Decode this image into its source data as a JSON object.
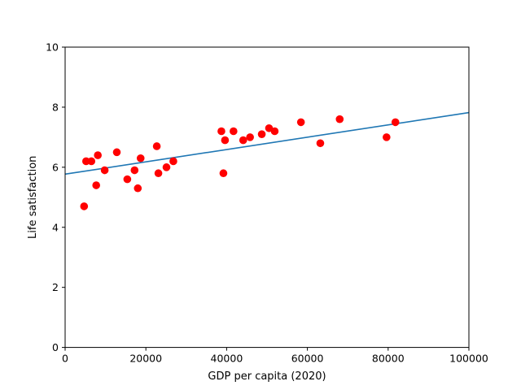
{
  "chart_data": {
    "type": "scatter",
    "xlabel": "GDP per capita (2020)",
    "ylabel": "Life satisfaction",
    "xlim": [
      0,
      100000
    ],
    "ylim": [
      0,
      10
    ],
    "xticks": [
      0,
      20000,
      40000,
      60000,
      80000,
      100000
    ],
    "yticks": [
      0,
      2,
      4,
      6,
      8,
      10
    ],
    "grid": false,
    "legend": "none",
    "points": {
      "color": "#ff0000",
      "x": [
        4700,
        5200,
        6500,
        7700,
        8100,
        9800,
        12800,
        15400,
        17200,
        18000,
        18700,
        22700,
        23100,
        25100,
        26800,
        38700,
        39200,
        39600,
        41700,
        44100,
        45800,
        48700,
        50500,
        51900,
        58400,
        63200,
        68000,
        79600,
        81800
      ],
      "y": [
        4.7,
        6.2,
        6.2,
        5.4,
        6.4,
        5.9,
        6.5,
        5.6,
        5.9,
        5.3,
        6.3,
        6.7,
        5.8,
        6.0,
        6.2,
        7.2,
        5.8,
        6.9,
        7.2,
        6.9,
        7.0,
        7.1,
        7.3,
        7.2,
        7.5,
        6.8,
        7.6,
        7.0,
        7.5
      ]
    },
    "fit_line": {
      "color": "#1f77b4",
      "x": [
        0,
        100000
      ],
      "y": [
        5.77,
        7.82
      ]
    }
  }
}
